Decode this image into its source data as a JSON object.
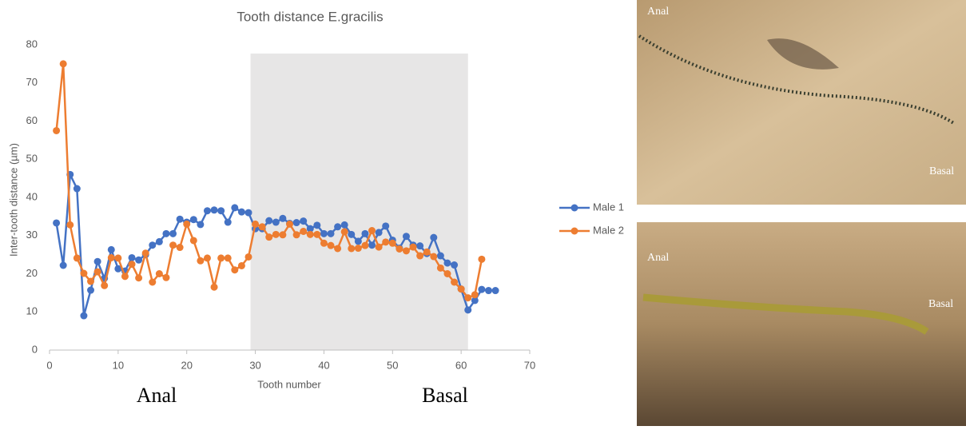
{
  "chart_data": {
    "type": "line",
    "title": "Tooth distance E.gracilis",
    "x_label": "Tooth number",
    "y_label": "Inter-tooth distance (µm)",
    "region_labels": [
      "Anal",
      "Basal"
    ],
    "shaded_region": [
      29.3,
      61
    ],
    "x": [
      1,
      2,
      3,
      4,
      5,
      6,
      7,
      8,
      9,
      10,
      11,
      12,
      13,
      14,
      15,
      16,
      17,
      18,
      19,
      20,
      21,
      22,
      23,
      24,
      25,
      26,
      27,
      28,
      29,
      30,
      31,
      32,
      33,
      34,
      35,
      36,
      37,
      38,
      39,
      40,
      41,
      42,
      43,
      44,
      45,
      46,
      47,
      48,
      49,
      50,
      51,
      52,
      53,
      54,
      55,
      56,
      57,
      58,
      59,
      60,
      61,
      62,
      63,
      64,
      65
    ],
    "series": [
      {
        "name": "Male 1",
        "color": "#4472c4",
        "values": [
          33.3,
          22.2,
          46,
          42.3,
          9,
          15.7,
          23.2,
          18.8,
          26.3,
          21.3,
          20.7,
          24.2,
          23.6,
          25,
          27.5,
          28.4,
          30.5,
          30.5,
          34.3,
          33.5,
          34.2,
          32.9,
          36.5,
          36.7,
          36.5,
          33.5,
          37.3,
          36.2,
          36,
          31.8,
          31.8,
          33.9,
          33.5,
          34.5,
          33.2,
          33.4,
          33.8,
          31.8,
          32.7,
          30.5,
          30.5,
          32.3,
          32.8,
          30.3,
          28.5,
          30.5,
          27.5,
          30.8,
          32.5,
          28.8,
          26.7,
          29.8,
          27.5,
          27.3,
          25.3,
          29.5,
          24.7,
          22.8,
          22.3,
          16,
          10.5,
          13,
          15.9,
          15.6,
          15.6
        ]
      },
      {
        "name": "Male 2",
        "color": "#ed7d31",
        "values": [
          57.5,
          75,
          32.8,
          24.1,
          20.1,
          18,
          20.5,
          16.9,
          24.2,
          24.1,
          19.3,
          22.5,
          18.9,
          25.4,
          17.8,
          20,
          19,
          27.5,
          26.9,
          33,
          28.7,
          23.4,
          24.1,
          16.5,
          24.1,
          24.1,
          21,
          22.1,
          24.4,
          33,
          32.3,
          29.6,
          30.3,
          30.2,
          33,
          30.2,
          31.1,
          30.3,
          30.3,
          28,
          27.4,
          26.6,
          31,
          26.6,
          26.7,
          27.4,
          31.3,
          27,
          28.3,
          28,
          26.5,
          26,
          27,
          24.7,
          25.7,
          24.5,
          21.5,
          20,
          17.8,
          16,
          13.7,
          14.5,
          23.8,
          null,
          null
        ]
      }
    ],
    "xlim": [
      0,
      70
    ],
    "xticks": [
      0,
      10,
      20,
      30,
      40,
      50,
      60,
      70
    ],
    "ylim": [
      0,
      80
    ],
    "yticks": [
      0,
      10,
      20,
      30,
      40,
      50,
      60,
      70,
      80
    ],
    "grid": false,
    "legend": "right"
  },
  "photos": [
    {
      "labels": [
        "Anal",
        "Basal"
      ]
    },
    {
      "labels": [
        "Anal",
        "Basal"
      ]
    }
  ]
}
